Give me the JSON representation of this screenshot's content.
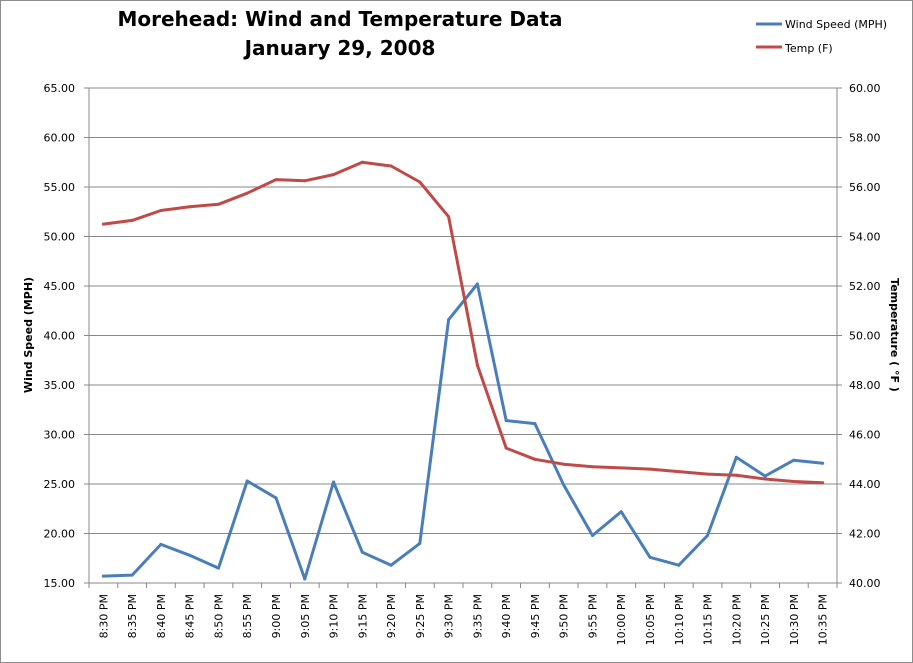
{
  "chart_data": {
    "type": "line",
    "title": [
      "Morehead: Wind and Temperature Data",
      "January 29, 2008"
    ],
    "ylabel_left": "Wind Speed (MPH)",
    "ylabel_right": "Temperature ( °F )",
    "ylim_left": [
      15,
      65
    ],
    "ylim_right": [
      40,
      60
    ],
    "yticks_left": [
      "15.00",
      "20.00",
      "25.00",
      "30.00",
      "35.00",
      "40.00",
      "45.00",
      "50.00",
      "55.00",
      "60.00",
      "65.00"
    ],
    "yticks_right": [
      "40.00",
      "42.00",
      "44.00",
      "46.00",
      "48.00",
      "50.00",
      "52.00",
      "54.00",
      "56.00",
      "58.00",
      "60.00"
    ],
    "grid": true,
    "legend_position": "top-right",
    "categories": [
      "8:30 PM",
      "8:35 PM",
      "8:40 PM",
      "8:45 PM",
      "8:50 PM",
      "8:55 PM",
      "9:00 PM",
      "9:05 PM",
      "9:10 PM",
      "9:15 PM",
      "9:20 PM",
      "9:25 PM",
      "9:30 PM",
      "9:35 PM",
      "9:40 PM",
      "9:45 PM",
      "9:50 PM",
      "9:55 PM",
      "10:00 PM",
      "10:05 PM",
      "10:10 PM",
      "10:15 PM",
      "10:20 PM",
      "10:25 PM",
      "10:30 PM",
      "10:35 PM"
    ],
    "series": [
      {
        "name": "Wind Speed (MPH)",
        "axis": "left",
        "color": "#4a7ebb",
        "values": [
          15.7,
          15.8,
          18.9,
          17.8,
          16.5,
          25.3,
          23.6,
          15.4,
          25.2,
          18.1,
          16.8,
          19.0,
          41.6,
          45.2,
          31.4,
          31.1,
          24.9,
          19.8,
          22.2,
          17.6,
          16.8,
          19.8,
          27.7,
          25.8,
          27.4,
          27.1
        ]
      },
      {
        "name": "Temp (F)",
        "axis": "right",
        "color": "#be4b48",
        "values": [
          54.5,
          54.65,
          55.05,
          55.2,
          55.3,
          55.75,
          56.3,
          56.25,
          56.5,
          57.0,
          56.85,
          56.2,
          54.8,
          48.8,
          45.45,
          45.0,
          44.8,
          44.7,
          44.65,
          44.6,
          44.5,
          44.4,
          44.35,
          44.2,
          44.1,
          44.05
        ]
      }
    ]
  }
}
